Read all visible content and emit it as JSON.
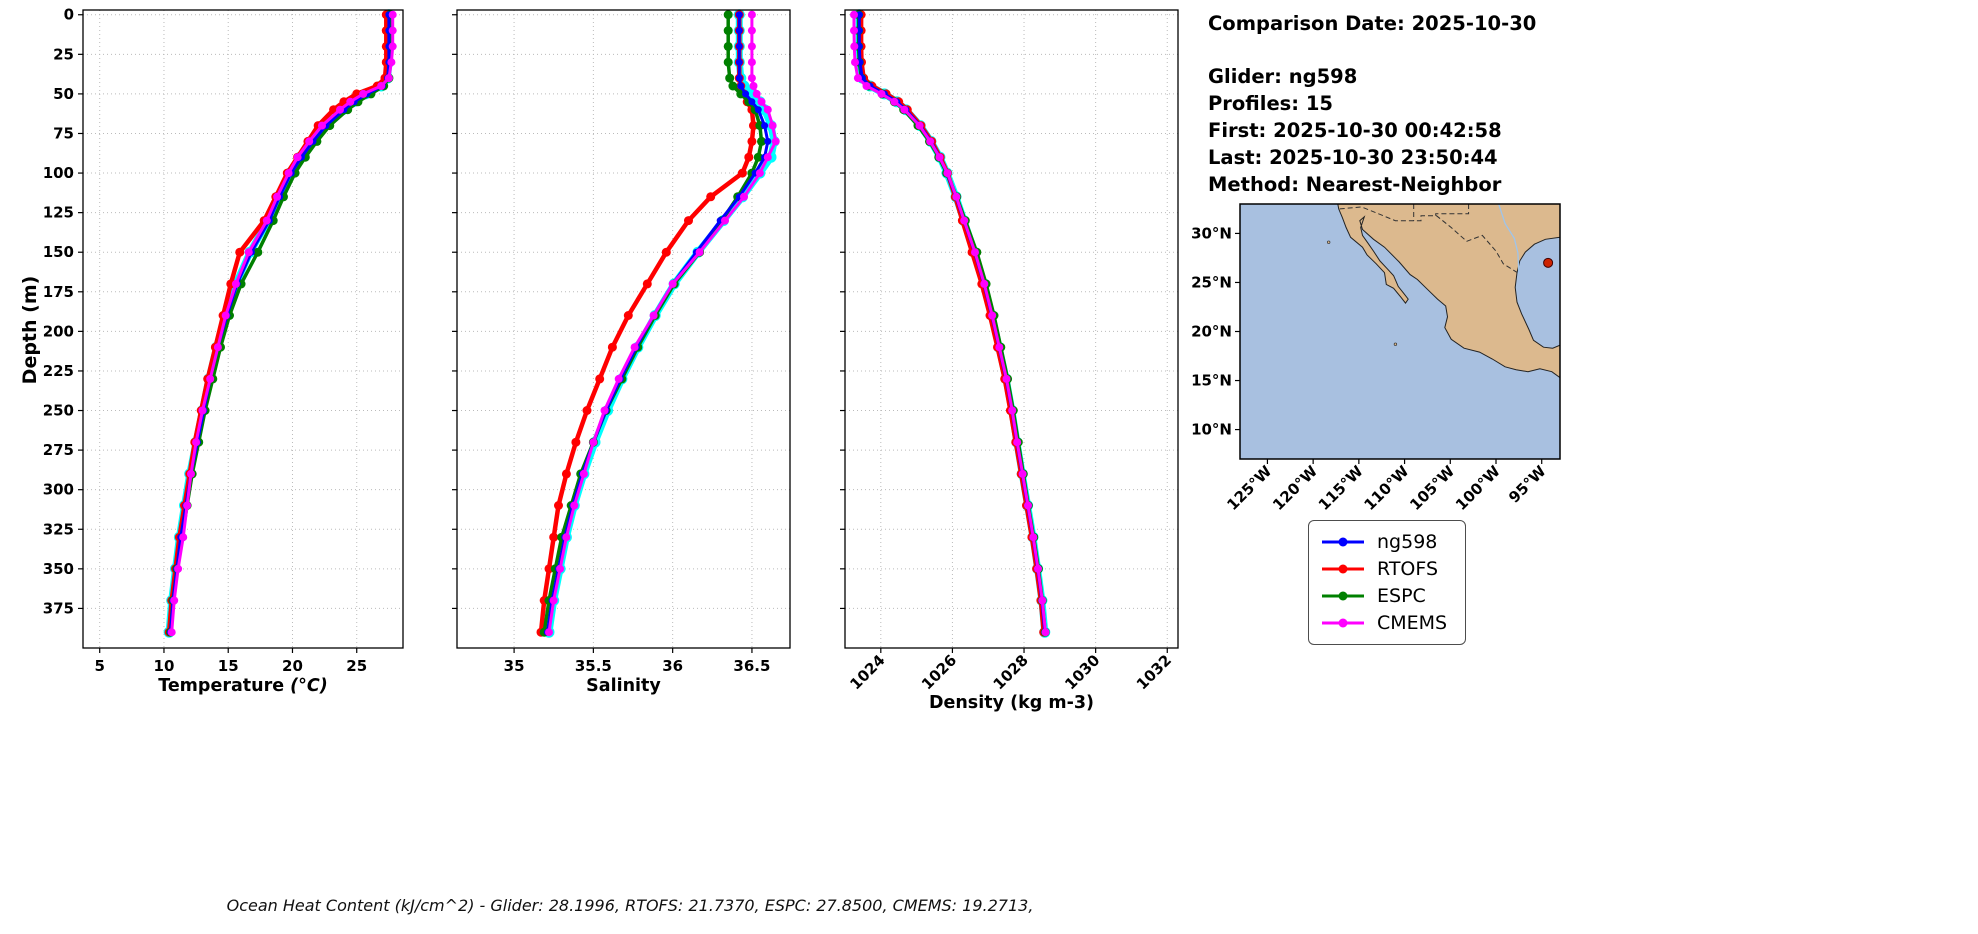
{
  "info_panel": {
    "comparison_date": "Comparison Date: 2025-10-30",
    "glider": "Glider: ng598",
    "profiles": "Profiles: 15",
    "first": "First: 2025-10-30 00:42:58",
    "last": "Last: 2025-10-30 23:50:44",
    "method": "Method: Nearest-Neighbor"
  },
  "footer": "Ocean Heat Content (kJ/cm^2) - Glider: 28.1996,  RTOFS: 21.7370,  ESPC: 27.8500,  CMEMS: 19.2713,",
  "legend": {
    "entries": [
      {
        "label": "ng598",
        "color": "#0000ff"
      },
      {
        "label": "RTOFS",
        "color": "#ff0000"
      },
      {
        "label": "ESPC",
        "color": "#008000"
      },
      {
        "label": "CMEMS",
        "color": "#ff00ff"
      }
    ]
  },
  "map": {
    "ocean_color": "#a8c0e0",
    "land_color": "#dcb98e",
    "lon_lim": [
      128,
      93
    ],
    "lat_lim": [
      33,
      7
    ],
    "lat_ticks": [
      {
        "v": 30,
        "label": "30°N"
      },
      {
        "v": 25,
        "label": "25°N"
      },
      {
        "v": 20,
        "label": "20°N"
      },
      {
        "v": 15,
        "label": "15°N"
      },
      {
        "v": 10,
        "label": "10°N"
      }
    ],
    "lon_ticks": [
      {
        "v": 125,
        "label": "125°W"
      },
      {
        "v": 120,
        "label": "120°W"
      },
      {
        "v": 115,
        "label": "115°W"
      },
      {
        "v": 110,
        "label": "110°W"
      },
      {
        "v": 105,
        "label": "105°W"
      },
      {
        "v": 100,
        "label": "100°W"
      },
      {
        "v": 95,
        "label": "95°W"
      }
    ],
    "marker": {
      "lon": 94.3,
      "lat": 27.0,
      "color": "#cc2200"
    }
  },
  "chart_data": {
    "type": "line",
    "shared_y": {
      "label": "Depth (m)",
      "ticks": [
        0,
        25,
        50,
        75,
        100,
        125,
        150,
        175,
        200,
        225,
        250,
        275,
        300,
        325,
        350,
        375
      ],
      "lim": [
        -3,
        400
      ]
    },
    "depths": [
      0,
      10,
      20,
      30,
      40,
      45,
      50,
      55,
      60,
      70,
      80,
      90,
      100,
      115,
      130,
      150,
      170,
      190,
      210,
      230,
      250,
      270,
      290,
      310,
      330,
      350,
      370,
      390
    ],
    "panels": [
      {
        "id": "temperature",
        "xlabel": "Temperature",
        "xunit": "(°C)",
        "xunit_italic": true,
        "xlim": [
          3.7,
          28.6
        ],
        "x_ticks": [
          5,
          10,
          15,
          20,
          25
        ],
        "rotate_xticks": false,
        "series": [
          {
            "name": "glider-envelope",
            "color": "#00ffff",
            "width": 7,
            "marker": 5.5,
            "values": [
              27.5,
              27.5,
              27.5,
              27.5,
              27.4,
              26.9,
              25.7,
              24.7,
              23.9,
              22.5,
              21.5,
              20.6,
              19.8,
              18.9,
              18.1,
              16.7,
              15.6,
              14.8,
              14.1,
              13.5,
              13.0,
              12.5,
              12.0,
              11.6,
              11.2,
              10.9,
              10.6,
              10.4
            ]
          },
          {
            "name": "RTOFS",
            "color": "#ff0000",
            "width": 4.5,
            "marker": 4.5,
            "values": [
              27.3,
              27.3,
              27.3,
              27.3,
              27.2,
              26.6,
              25.0,
              24.0,
              23.2,
              22.0,
              21.2,
              20.4,
              19.6,
              18.7,
              17.8,
              15.9,
              15.2,
              14.6,
              14.0,
              13.4,
              12.9,
              12.4,
              12.0,
              11.6,
              11.2,
              10.9,
              10.6,
              10.4
            ]
          },
          {
            "name": "ESPC",
            "color": "#008000",
            "width": 3.5,
            "marker": 4.5,
            "values": [
              27.6,
              27.6,
              27.6,
              27.6,
              27.5,
              27.1,
              26.1,
              25.1,
              24.3,
              22.9,
              21.9,
              21.0,
              20.2,
              19.3,
              18.5,
              17.3,
              16.0,
              15.1,
              14.4,
              13.8,
              13.2,
              12.7,
              12.2,
              11.8,
              11.4,
              11.0,
              10.7,
              10.5
            ]
          },
          {
            "name": "ng598",
            "color": "#0000ff",
            "width": 3,
            "marker": 3.5,
            "values": [
              27.5,
              27.5,
              27.5,
              27.5,
              27.4,
              27.0,
              25.8,
              24.8,
              24.0,
              22.6,
              21.6,
              20.7,
              19.9,
              19.0,
              18.2,
              16.8,
              15.7,
              14.9,
              14.2,
              13.6,
              13.1,
              12.6,
              12.1,
              11.7,
              11.3,
              11.0,
              10.7,
              10.5
            ]
          },
          {
            "name": "CMEMS",
            "color": "#ff00ff",
            "width": 3,
            "marker": 4,
            "values": [
              27.8,
              27.8,
              27.8,
              27.7,
              27.5,
              26.9,
              25.5,
              24.5,
              23.7,
              22.3,
              21.3,
              20.4,
              19.7,
              18.8,
              18.0,
              16.6,
              15.6,
              14.8,
              14.2,
              13.6,
              13.0,
              12.5,
              12.1,
              11.8,
              11.5,
              11.1,
              10.8,
              10.6
            ]
          }
        ]
      },
      {
        "id": "salinity",
        "xlabel": "Salinity",
        "xunit": "",
        "xunit_italic": false,
        "xlim": [
          34.64,
          36.74
        ],
        "x_ticks": [
          35.0,
          35.5,
          36.0,
          36.5
        ],
        "rotate_xticks": false,
        "series": [
          {
            "name": "glider-envelope",
            "color": "#00ffff",
            "width": 7,
            "marker": 5.5,
            "values": [
              36.42,
              36.42,
              36.42,
              36.42,
              36.43,
              36.45,
              36.5,
              36.55,
              36.58,
              36.62,
              36.64,
              36.62,
              36.55,
              36.44,
              36.32,
              36.16,
              36.01,
              35.89,
              35.78,
              35.68,
              35.59,
              35.51,
              35.44,
              35.38,
              35.33,
              35.29,
              35.25,
              35.22
            ]
          },
          {
            "name": "RTOFS",
            "color": "#ff0000",
            "width": 4.5,
            "marker": 4.5,
            "values": [
              36.42,
              36.42,
              36.42,
              36.42,
              36.42,
              36.43,
              36.45,
              36.47,
              36.5,
              36.51,
              36.5,
              36.48,
              36.44,
              36.24,
              36.1,
              35.96,
              35.84,
              35.72,
              35.62,
              35.54,
              35.46,
              35.39,
              35.33,
              35.28,
              35.25,
              35.22,
              35.19,
              35.17
            ]
          },
          {
            "name": "ESPC",
            "color": "#008000",
            "width": 3.5,
            "marker": 4.5,
            "values": [
              36.35,
              36.35,
              36.35,
              36.35,
              36.36,
              36.38,
              36.43,
              36.48,
              36.52,
              36.55,
              36.56,
              36.54,
              36.5,
              36.41,
              36.31,
              36.17,
              36.01,
              35.89,
              35.78,
              35.68,
              35.58,
              35.5,
              35.42,
              35.36,
              35.3,
              35.26,
              35.22,
              35.19
            ]
          },
          {
            "name": "ng598",
            "color": "#0000ff",
            "width": 3,
            "marker": 3.5,
            "values": [
              36.42,
              36.42,
              36.42,
              36.42,
              36.42,
              36.43,
              36.46,
              36.5,
              36.54,
              36.58,
              36.6,
              36.58,
              36.52,
              36.42,
              36.3,
              36.15,
              36.0,
              35.88,
              35.77,
              35.67,
              35.58,
              35.5,
              35.43,
              35.37,
              35.32,
              35.28,
              35.24,
              35.21
            ]
          },
          {
            "name": "CMEMS",
            "color": "#ff00ff",
            "width": 3,
            "marker": 4,
            "values": [
              36.5,
              36.5,
              36.5,
              36.5,
              36.5,
              36.51,
              36.53,
              36.56,
              36.6,
              36.63,
              36.65,
              36.6,
              36.55,
              36.45,
              36.33,
              36.17,
              36.0,
              35.88,
              35.76,
              35.66,
              35.57,
              35.5,
              35.44,
              35.38,
              35.33,
              35.29,
              35.25,
              35.22
            ]
          }
        ]
      },
      {
        "id": "density",
        "xlabel": "Density",
        "xunit": "(kg m-3)",
        "xunit_italic": false,
        "xlim": [
          1023.0,
          1032.3
        ],
        "x_ticks": [
          1024,
          1026,
          1028,
          1030,
          1032
        ],
        "rotate_xticks": true,
        "series": [
          {
            "name": "glider-envelope",
            "color": "#00ffff",
            "width": 7,
            "marker": 5.5,
            "values": [
              1023.4,
              1023.4,
              1023.4,
              1023.42,
              1023.48,
              1023.7,
              1024.1,
              1024.45,
              1024.7,
              1025.1,
              1025.4,
              1025.65,
              1025.85,
              1026.1,
              1026.32,
              1026.62,
              1026.88,
              1027.1,
              1027.3,
              1027.5,
              1027.66,
              1027.8,
              1027.95,
              1028.1,
              1028.25,
              1028.38,
              1028.5,
              1028.58
            ]
          },
          {
            "name": "RTOFS",
            "color": "#ff0000",
            "width": 4.5,
            "marker": 4.5,
            "values": [
              1023.45,
              1023.45,
              1023.45,
              1023.46,
              1023.52,
              1023.75,
              1024.15,
              1024.5,
              1024.74,
              1025.12,
              1025.42,
              1025.66,
              1025.86,
              1026.08,
              1026.28,
              1026.55,
              1026.82,
              1027.05,
              1027.26,
              1027.46,
              1027.62,
              1027.77,
              1027.92,
              1028.07,
              1028.22,
              1028.35,
              1028.47,
              1028.55
            ]
          },
          {
            "name": "ESPC",
            "color": "#008000",
            "width": 3.5,
            "marker": 4.5,
            "values": [
              1023.38,
              1023.38,
              1023.38,
              1023.4,
              1023.46,
              1023.66,
              1024.04,
              1024.38,
              1024.64,
              1025.04,
              1025.36,
              1025.62,
              1025.84,
              1026.12,
              1026.36,
              1026.68,
              1026.94,
              1027.16,
              1027.35,
              1027.54,
              1027.7,
              1027.84,
              1027.98,
              1028.12,
              1028.27,
              1028.4,
              1028.51,
              1028.59
            ]
          },
          {
            "name": "ng598",
            "color": "#0000ff",
            "width": 3,
            "marker": 3.5,
            "values": [
              1023.4,
              1023.4,
              1023.4,
              1023.42,
              1023.48,
              1023.7,
              1024.1,
              1024.45,
              1024.7,
              1025.1,
              1025.4,
              1025.65,
              1025.85,
              1026.1,
              1026.32,
              1026.62,
              1026.88,
              1027.1,
              1027.3,
              1027.5,
              1027.66,
              1027.8,
              1027.95,
              1028.1,
              1028.25,
              1028.38,
              1028.5,
              1028.58
            ]
          },
          {
            "name": "CMEMS",
            "color": "#ff00ff",
            "width": 3,
            "marker": 4,
            "values": [
              1023.25,
              1023.25,
              1023.26,
              1023.28,
              1023.36,
              1023.6,
              1024.02,
              1024.38,
              1024.66,
              1025.08,
              1025.38,
              1025.64,
              1025.86,
              1026.11,
              1026.33,
              1026.63,
              1026.89,
              1027.11,
              1027.31,
              1027.51,
              1027.67,
              1027.81,
              1027.96,
              1028.11,
              1028.26,
              1028.39,
              1028.51,
              1028.6
            ]
          }
        ]
      }
    ]
  }
}
